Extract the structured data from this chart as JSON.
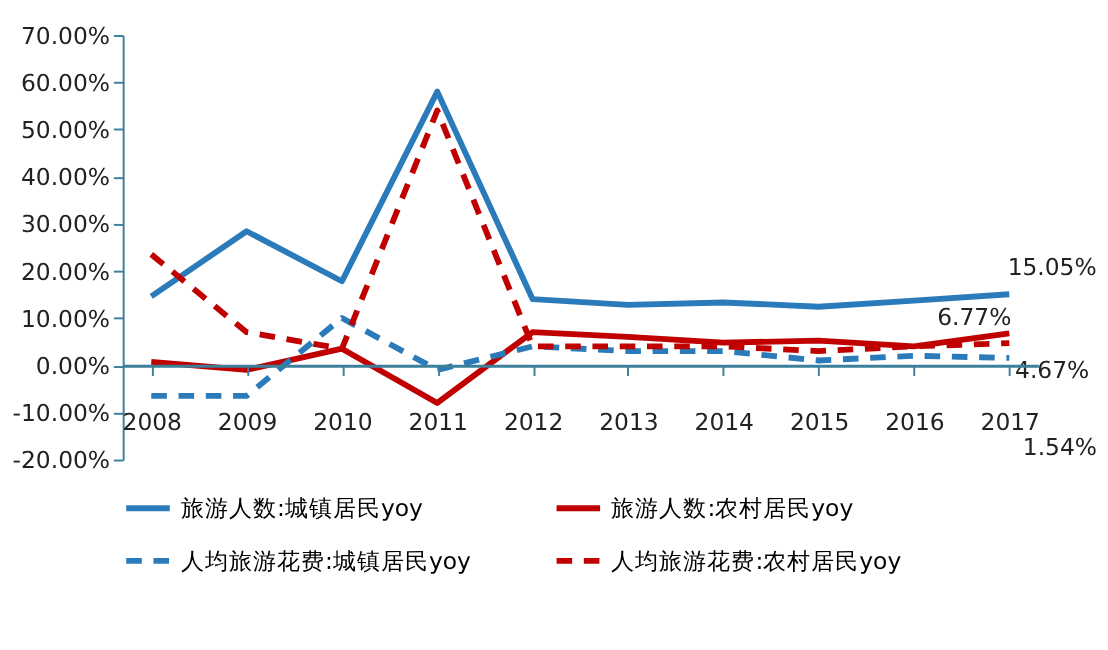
{
  "chart_data": {
    "type": "line",
    "categories": [
      "2008",
      "2009",
      "2010",
      "2011",
      "2012",
      "2013",
      "2014",
      "2015",
      "2016",
      "2017"
    ],
    "series": [
      {
        "name": "旅游人数:城镇居民yoy",
        "color": "#2b7bba",
        "line_style": "solid",
        "values": [
          14.6,
          28.4,
          17.8,
          58.0,
          14.0,
          12.8,
          13.3,
          12.4,
          13.7,
          15.05
        ],
        "value_labels": [
          null,
          null,
          null,
          null,
          null,
          null,
          null,
          null,
          null,
          "15.05%"
        ]
      },
      {
        "name": "旅游人数:农村居民yoy",
        "color": "#c00000",
        "line_style": "solid",
        "values": [
          0.7,
          -1.0,
          3.5,
          -8.0,
          7.0,
          6.0,
          4.8,
          5.2,
          4.0,
          6.77
        ],
        "value_labels": [
          null,
          null,
          null,
          null,
          null,
          null,
          null,
          null,
          null,
          "6.77%"
        ]
      },
      {
        "name": "人均旅游花费:城镇居民yoy",
        "color": "#2b7bba",
        "line_style": "dashed",
        "values": [
          -6.5,
          -6.5,
          10.0,
          -1.0,
          4.0,
          3.0,
          3.0,
          1.0,
          2.0,
          1.54
        ],
        "value_labels": [
          null,
          null,
          null,
          null,
          null,
          null,
          null,
          null,
          null,
          "1.54%"
        ]
      },
      {
        "name": "人均旅游花费:农村居民yoy",
        "color": "#c00000",
        "line_style": "dashed",
        "values": [
          23.5,
          7.0,
          3.5,
          54.0,
          4.0,
          4.0,
          4.0,
          3.0,
          4.0,
          4.67
        ],
        "value_labels": [
          null,
          null,
          null,
          null,
          null,
          null,
          null,
          null,
          null,
          "4.67%"
        ]
      }
    ],
    "ylim": [
      -20,
      70
    ],
    "yticks": [
      {
        "value": -20,
        "label": "-20.00%"
      },
      {
        "value": -10,
        "label": "-10.00%"
      },
      {
        "value": 0,
        "label": "0.00%"
      },
      {
        "value": 10,
        "label": "10.00%"
      },
      {
        "value": 20,
        "label": "20.00%"
      },
      {
        "value": 30,
        "label": "30.00%"
      },
      {
        "value": 40,
        "label": "40.00%"
      },
      {
        "value": 50,
        "label": "50.00%"
      },
      {
        "value": 60,
        "label": "60.00%"
      },
      {
        "value": 70,
        "label": "70.00%"
      }
    ],
    "grid": false,
    "legend": "bottom"
  }
}
